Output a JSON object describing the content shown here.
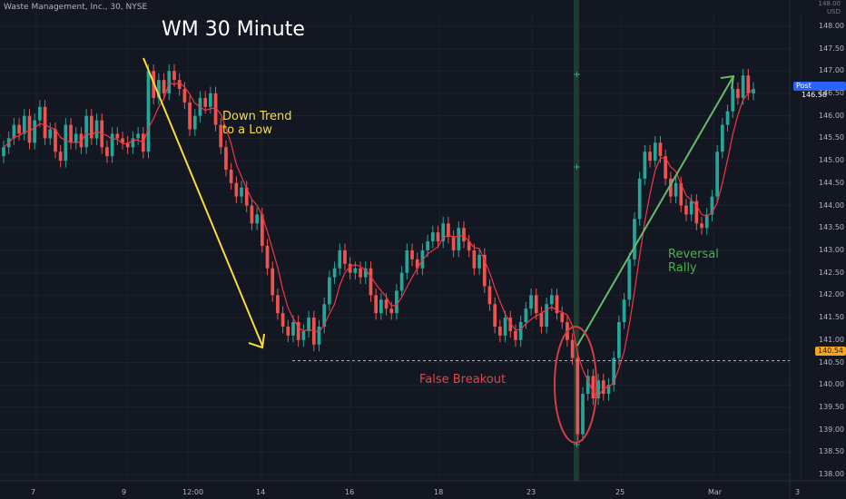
{
  "header": {
    "symbol": "Waste Management, Inc., 30, NYSE",
    "axis_unit_top": "148.00",
    "axis_unit_currency": "USD"
  },
  "chart_data": {
    "type": "candlestick",
    "title": "WM 30 Minute",
    "ylim": [
      137.7,
      148.5
    ],
    "y_ticks": [
      "148.00",
      "147.50",
      "147.00",
      "146.50",
      "146.00",
      "145.50",
      "145.00",
      "144.50",
      "144.00",
      "143.50",
      "143.00",
      "142.50",
      "142.00",
      "141.50",
      "141.00",
      "140.50",
      "140.00",
      "139.50",
      "139.00",
      "138.50",
      "138.00"
    ],
    "x_ticks": [
      "7",
      "9",
      "12:00",
      "14",
      "16",
      "18",
      "23",
      "25",
      "Mar",
      "3"
    ],
    "colors": {
      "up": "#26a69a",
      "down": "#ef5350",
      "ma": "#f23645",
      "background": "#131722",
      "grid": "#1e222d"
    },
    "close_series": [
      145.3,
      145.5,
      145.8,
      145.6,
      146.0,
      145.4,
      145.9,
      146.2,
      145.5,
      145.7,
      145.2,
      145.0,
      145.8,
      145.4,
      145.6,
      145.3,
      146.0,
      145.5,
      145.9,
      145.3,
      145.1,
      145.6,
      145.5,
      145.4,
      145.3,
      145.5,
      145.6,
      145.2,
      147.0,
      146.4,
      146.8,
      146.5,
      147.0,
      146.8,
      146.6,
      146.3,
      145.7,
      146.0,
      146.4,
      146.2,
      146.5,
      145.8,
      145.3,
      144.8,
      144.5,
      144.2,
      144.4,
      144.0,
      143.6,
      143.8,
      143.1,
      142.6,
      142.0,
      141.6,
      141.3,
      141.1,
      141.4,
      141.0,
      141.2,
      141.5,
      140.9,
      141.3,
      141.8,
      142.4,
      142.6,
      143.0,
      142.7,
      142.5,
      142.6,
      142.4,
      142.6,
      142.0,
      141.6,
      141.9,
      141.7,
      141.6,
      142.1,
      142.5,
      143.0,
      142.8,
      142.6,
      143.0,
      143.2,
      143.4,
      143.2,
      143.6,
      143.3,
      143.0,
      143.5,
      143.2,
      143.0,
      142.6,
      142.9,
      142.2,
      141.8,
      141.3,
      141.1,
      141.5,
      141.2,
      141.0,
      141.4,
      141.7,
      142.0,
      141.6,
      141.3,
      141.8,
      142.0,
      141.6,
      141.4,
      141.0,
      140.6,
      138.9,
      139.8,
      140.2,
      139.7,
      140.1,
      139.8,
      140.0,
      140.6,
      141.4,
      141.9,
      142.8,
      143.7,
      144.6,
      145.2,
      145.0,
      145.4,
      145.1,
      144.6,
      144.2,
      144.5,
      144.0,
      143.8,
      144.1,
      143.6,
      143.5,
      143.8,
      144.2,
      145.2,
      145.8,
      146.1,
      146.6,
      146.4,
      146.9,
      146.5,
      146.6
    ],
    "annotations": [
      {
        "text": "Down Trend",
        "color": "#f7dc3a"
      },
      {
        "text": "to a Low",
        "color": "#f7dc3a"
      },
      {
        "text": "False Breakout",
        "color": "#e0454a"
      },
      {
        "text": "Reversal",
        "color": "#4caf50"
      },
      {
        "text": "Rally",
        "color": "#4caf50"
      }
    ],
    "current_price": {
      "label": "Post",
      "value": "146.58",
      "color": "#2962ff"
    },
    "support_level": {
      "value": "140.54",
      "y": 140.54,
      "color": "#f5a623"
    },
    "grid": true,
    "legend": "none"
  }
}
